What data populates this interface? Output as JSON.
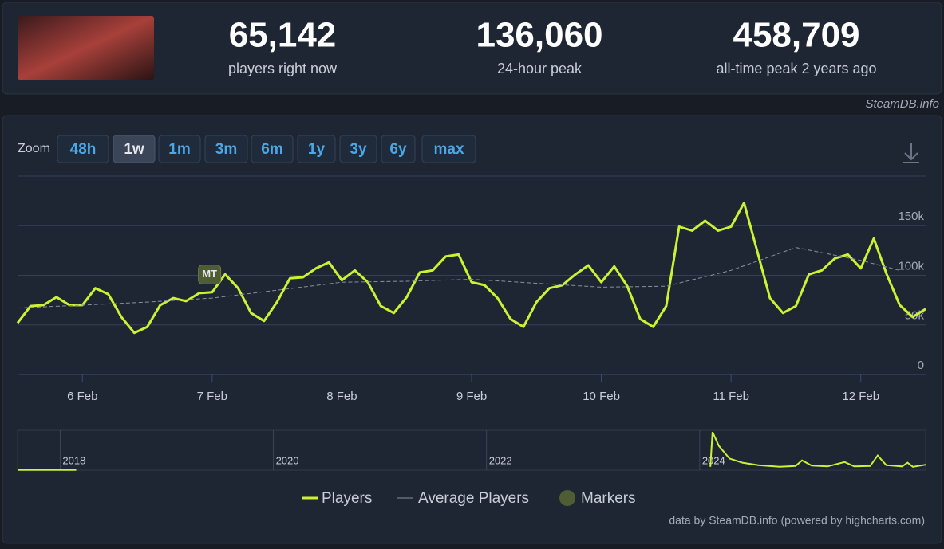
{
  "header": {
    "stats": [
      {
        "value": "65,142",
        "label": "players right now"
      },
      {
        "value": "136,060",
        "label": "24-hour peak"
      },
      {
        "value": "458,709",
        "label": "all-time peak 2 years ago"
      }
    ]
  },
  "watermark": "SteamDB.info",
  "zoom": {
    "label": "Zoom",
    "buttons": [
      "48h",
      "1w",
      "1m",
      "3m",
      "6m",
      "1y",
      "3y",
      "6y",
      "max"
    ],
    "active": 1
  },
  "chart_data": [
    {
      "type": "line",
      "x": [
        5.5,
        5.6,
        5.7,
        5.8,
        5.9,
        6.0,
        6.1,
        6.2,
        6.3,
        6.4,
        6.5,
        6.6,
        6.7,
        6.8,
        6.9,
        7.0,
        7.1,
        7.2,
        7.3,
        7.4,
        7.5,
        7.6,
        7.7,
        7.8,
        7.9,
        8.0,
        8.1,
        8.2,
        8.3,
        8.4,
        8.5,
        8.6,
        8.7,
        8.8,
        8.9,
        9.0,
        9.1,
        9.2,
        9.3,
        9.4,
        9.5,
        9.6,
        9.7,
        9.8,
        9.9,
        10.0,
        10.1,
        10.2,
        10.3,
        10.4,
        10.5,
        10.6,
        10.7,
        10.8,
        10.9,
        11.0,
        11.1,
        11.2,
        11.3,
        11.4,
        11.5,
        11.6,
        11.7,
        11.8,
        11.9,
        12.0,
        12.1,
        12.2,
        12.3,
        12.4,
        12.5
      ],
      "series": [
        {
          "name": "Players",
          "color": "#cdf234",
          "values": [
            52000,
            69000,
            70000,
            78000,
            70000,
            70000,
            87000,
            81000,
            58000,
            42000,
            48000,
            70000,
            77000,
            74000,
            82000,
            83000,
            101000,
            87000,
            62000,
            54000,
            73000,
            97000,
            98000,
            107000,
            113000,
            95000,
            105000,
            93000,
            69000,
            62000,
            78000,
            103000,
            105000,
            119000,
            121000,
            93000,
            90000,
            77000,
            56000,
            48000,
            73000,
            87000,
            90000,
            101000,
            110000,
            93000,
            109000,
            89000,
            56000,
            48000,
            69000,
            149000,
            145000,
            155000,
            145000,
            149000,
            173000,
            125000,
            77000,
            62000,
            69000,
            101000,
            105000,
            117000,
            121000,
            107000,
            137000,
            101000,
            70000,
            58000,
            66000
          ]
        },
        {
          "name": "Average Players",
          "color": "#8a909b",
          "x": [
            5.5,
            6.0,
            6.5,
            7.0,
            7.5,
            8.0,
            8.5,
            9.0,
            9.5,
            10.0,
            10.5,
            11.0,
            11.5,
            12.0,
            12.3
          ],
          "values": [
            67000,
            70000,
            73000,
            77000,
            85000,
            93000,
            94000,
            96000,
            92000,
            88000,
            89000,
            105000,
            128000,
            115000,
            105000
          ]
        }
      ],
      "markers": {
        "name": "Markers",
        "color": "#4f5d35",
        "points": [
          {
            "x": 6.98,
            "y": 100000,
            "label": "MT"
          }
        ]
      },
      "xlim": [
        5.5,
        12.5
      ],
      "xticks": [
        {
          "value": 6,
          "label": "6 Feb"
        },
        {
          "value": 7,
          "label": "7 Feb"
        },
        {
          "value": 8,
          "label": "8 Feb"
        },
        {
          "value": 9,
          "label": "9 Feb"
        },
        {
          "value": 10,
          "label": "10 Feb"
        },
        {
          "value": 11,
          "label": "11 Feb"
        },
        {
          "value": 12,
          "label": "12 Feb"
        }
      ],
      "ylim": [
        0,
        200000
      ],
      "yticks": [
        0,
        {
          "value": 50000,
          "label": "50k"
        },
        {
          "value": 100000,
          "label": "100k"
        },
        {
          "value": 150000,
          "label": "150k"
        }
      ],
      "grid": true
    },
    {
      "type": "line",
      "x": [
        2017.6,
        2017.8,
        2018.0,
        2018.15,
        2021,
        2024.1,
        2024.12,
        2024.18,
        2024.28,
        2024.4,
        2024.55,
        2024.75,
        2024.9,
        2024.96,
        2025.05,
        2025.2,
        2025.36,
        2025.45,
        2025.6,
        2025.67,
        2025.75,
        2025.9,
        2025.95,
        2026.0,
        2026.12
      ],
      "series": [
        {
          "name": "Players",
          "color": "#cdf234",
          "values": [
            2000,
            2000,
            2000,
            2000,
            null,
            40000,
            458000,
            290000,
            140000,
            90000,
            60000,
            40000,
            50000,
            118000,
            55000,
            45000,
            98000,
            45000,
            50000,
            176000,
            60000,
            45000,
            90000,
            40000,
            65000
          ]
        }
      ],
      "xlim": [
        2017.6,
        2026.12
      ],
      "xticks": [
        2018,
        2020,
        2022,
        2024
      ],
      "ylim": [
        0,
        460000
      ]
    }
  ],
  "credits": "data by SteamDB.info (powered by highcharts.com)"
}
